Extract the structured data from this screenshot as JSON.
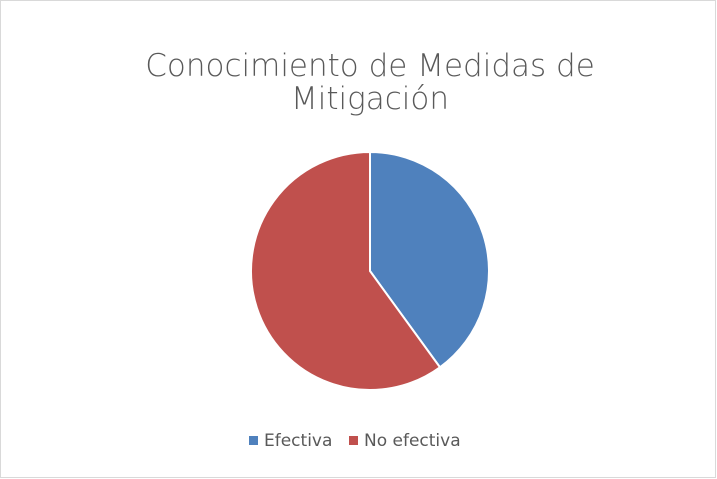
{
  "chart_data": {
    "type": "pie",
    "title": "Conocimiento de Medidas de Mitigación",
    "categories": [
      "Efectiva",
      "No efectiva"
    ],
    "values": [
      40,
      60
    ],
    "colors": [
      "#4f81bd",
      "#c0504d"
    ],
    "legend": "bottom"
  }
}
